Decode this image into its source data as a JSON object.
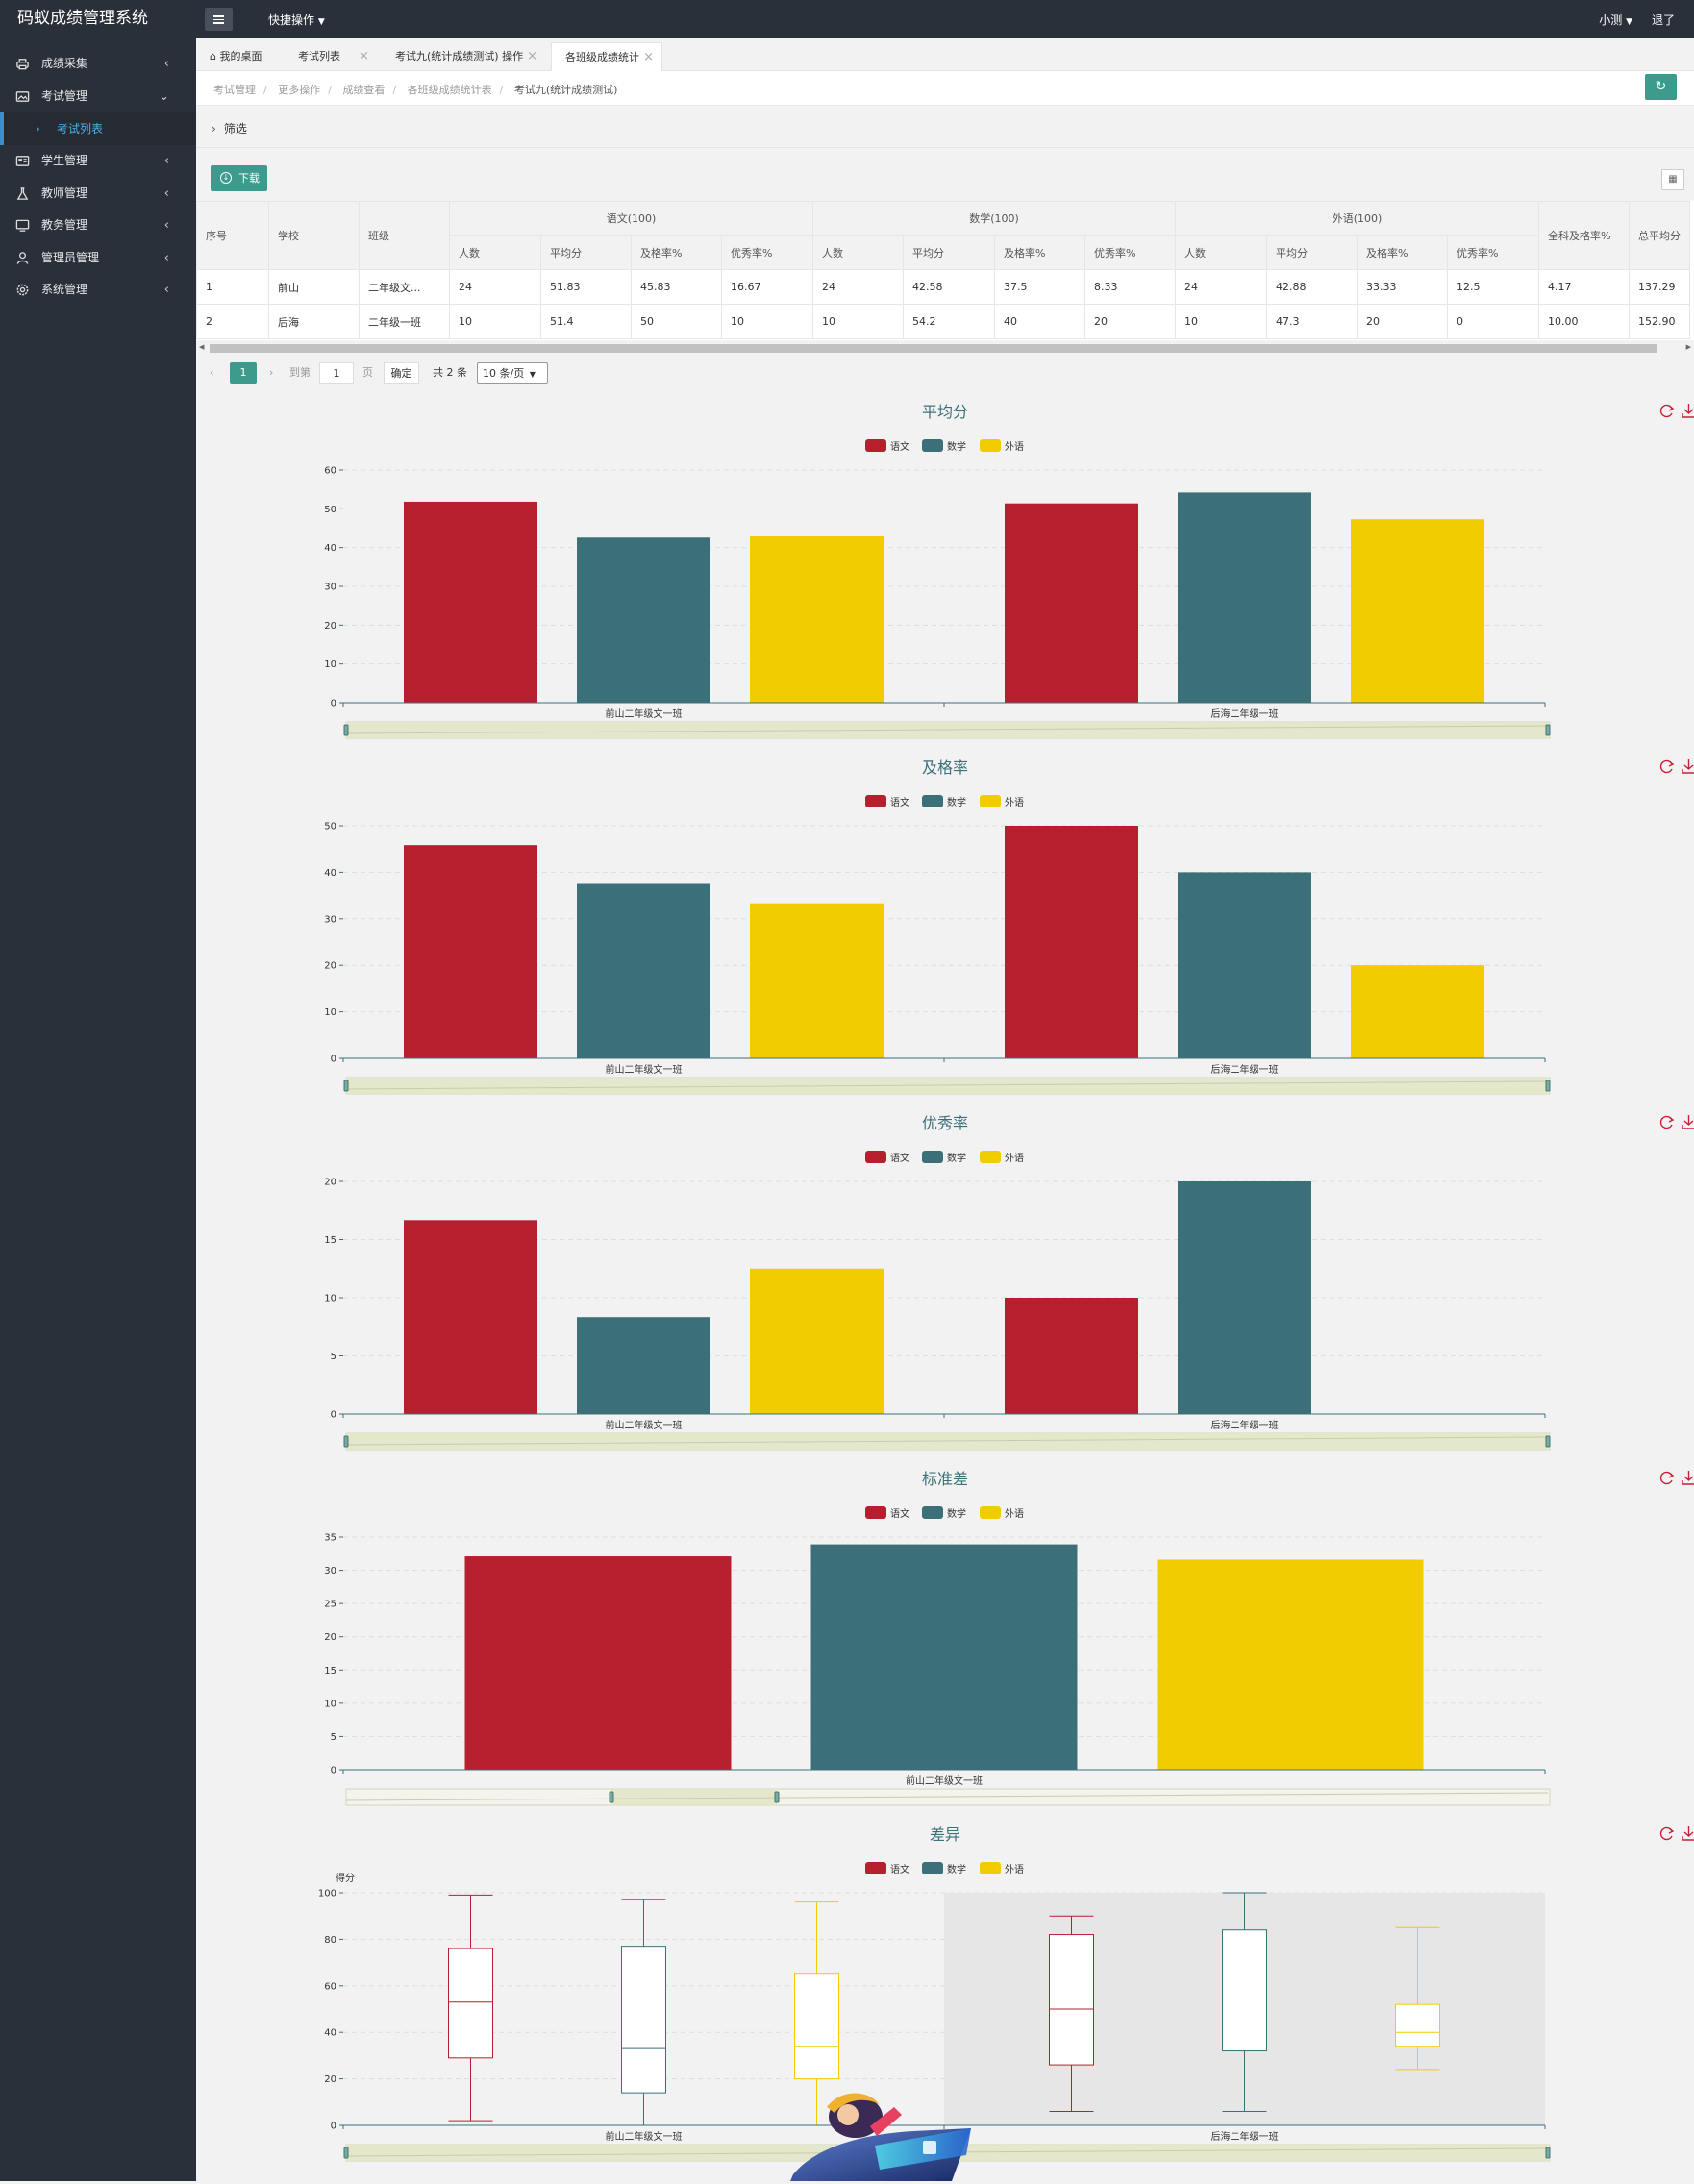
{
  "app": {
    "title": "码蚁成绩管理系统"
  },
  "sidebar": {
    "items": [
      {
        "label": "成绩采集",
        "icon": "printer-icon"
      },
      {
        "label": "考试管理",
        "icon": "images-icon"
      },
      {
        "label": "学生管理",
        "icon": "id-card-icon"
      },
      {
        "label": "教师管理",
        "icon": "flask-icon"
      },
      {
        "label": "教务管理",
        "icon": "monitor-icon"
      },
      {
        "label": "管理员管理",
        "icon": "user-icon"
      },
      {
        "label": "系统管理",
        "icon": "gear-icon"
      }
    ],
    "sub_item": {
      "label": "考试列表"
    }
  },
  "topbar": {
    "quick_label": "快捷操作",
    "user_label": "小测",
    "logout_label": "退了"
  },
  "tabs": [
    {
      "label": "我的桌面",
      "icon": "home-icon"
    },
    {
      "label": "考试列表"
    },
    {
      "label": "考试九(统计成绩测试) 操作"
    },
    {
      "label": "各班级成绩统计"
    }
  ],
  "breadcrumb": [
    "考试管理",
    "更多操作",
    "成绩查看",
    "各班级成绩统计表",
    "考试九(统计成绩测试)"
  ],
  "filter": {
    "label": "筛选"
  },
  "toolbar": {
    "download_label": "下载"
  },
  "table": {
    "h_seq": "序号",
    "h_school": "学校",
    "h_class": "班级",
    "groups": [
      "语文(100)",
      "数学(100)",
      "外语(100)"
    ],
    "sub_headers": [
      "人数",
      "平均分",
      "及格率%",
      "优秀率%"
    ],
    "h_all_pass": "全科及格率%",
    "h_total_avg": "总平均分",
    "rows": [
      {
        "seq": "1",
        "school": "前山",
        "class": "二年级文...",
        "vals": [
          "24",
          "51.83",
          "45.83",
          "16.67",
          "24",
          "42.58",
          "37.5",
          "8.33",
          "24",
          "42.88",
          "33.33",
          "12.5"
        ],
        "all_pass": "4.17",
        "total_avg": "137.29"
      },
      {
        "seq": "2",
        "school": "后海",
        "class": "二年级一班",
        "vals": [
          "10",
          "51.4",
          "50",
          "10",
          "10",
          "54.2",
          "40",
          "20",
          "10",
          "47.3",
          "20",
          "0"
        ],
        "all_pass": "10.00",
        "total_avg": "152.90"
      }
    ]
  },
  "pager": {
    "current": "1",
    "goto_label": "到第",
    "goto_value": "1",
    "page_unit": "页",
    "confirm": "确定",
    "total": "共 2 条",
    "page_size": "10 条/页"
  },
  "colors": {
    "chinese": "#b71f2e",
    "math": "#3c7079",
    "english": "#f0cc01",
    "accent": "#3d9b8e"
  },
  "legend": [
    "语文",
    "数学",
    "外语"
  ],
  "chart_data": [
    {
      "type": "bar",
      "title": "平均分",
      "categories": [
        "前山二年级文一班",
        "后海二年级一班"
      ],
      "series": [
        {
          "name": "语文",
          "values": [
            51.83,
            51.4
          ]
        },
        {
          "name": "数学",
          "values": [
            42.58,
            54.2
          ]
        },
        {
          "name": "外语",
          "values": [
            42.88,
            47.3
          ]
        }
      ],
      "ylim": [
        0,
        60
      ],
      "yticks": [
        0,
        10,
        20,
        30,
        40,
        50,
        60
      ]
    },
    {
      "type": "bar",
      "title": "及格率",
      "categories": [
        "前山二年级文一班",
        "后海二年级一班"
      ],
      "series": [
        {
          "name": "语文",
          "values": [
            45.83,
            50
          ]
        },
        {
          "name": "数学",
          "values": [
            37.5,
            40
          ]
        },
        {
          "name": "外语",
          "values": [
            33.33,
            20
          ]
        }
      ],
      "ylim": [
        0,
        50
      ],
      "yticks": [
        0,
        10,
        20,
        30,
        40,
        50
      ]
    },
    {
      "type": "bar",
      "title": "优秀率",
      "categories": [
        "前山二年级文一班",
        "后海二年级一班"
      ],
      "series": [
        {
          "name": "语文",
          "values": [
            16.67,
            10
          ]
        },
        {
          "name": "数学",
          "values": [
            8.33,
            20
          ]
        },
        {
          "name": "外语",
          "values": [
            12.5,
            0
          ]
        }
      ],
      "ylim": [
        0,
        20
      ],
      "yticks": [
        0,
        5,
        10,
        15,
        20
      ]
    },
    {
      "type": "bar",
      "title": "标准差",
      "categories": [
        "前山二年级文一班"
      ],
      "series": [
        {
          "name": "语文",
          "values": [
            32.1
          ]
        },
        {
          "name": "数学",
          "values": [
            33.9
          ]
        },
        {
          "name": "外语",
          "values": [
            31.6
          ]
        }
      ],
      "ylim": [
        0,
        35
      ],
      "yticks": [
        0,
        5,
        10,
        15,
        20,
        25,
        30,
        35
      ]
    },
    {
      "type": "boxplot",
      "title": "差异",
      "ylabel": "得分",
      "categories": [
        "前山二年级文一班",
        "后海二年级一班"
      ],
      "series": [
        {
          "name": "语文",
          "boxes": [
            [
              2,
              29,
              53,
              76,
              99
            ],
            [
              6,
              26,
              50,
              82,
              90
            ]
          ]
        },
        {
          "name": "数学",
          "boxes": [
            [
              0,
              14,
              33,
              77,
              97
            ],
            [
              6,
              32,
              44,
              84,
              100
            ]
          ]
        },
        {
          "name": "外语",
          "boxes": [
            [
              0,
              20,
              34,
              65,
              96
            ],
            [
              24,
              34,
              40,
              52,
              85
            ]
          ]
        }
      ],
      "ylim": [
        0,
        100
      ],
      "yticks": [
        0,
        20,
        40,
        60,
        80,
        100
      ]
    }
  ]
}
